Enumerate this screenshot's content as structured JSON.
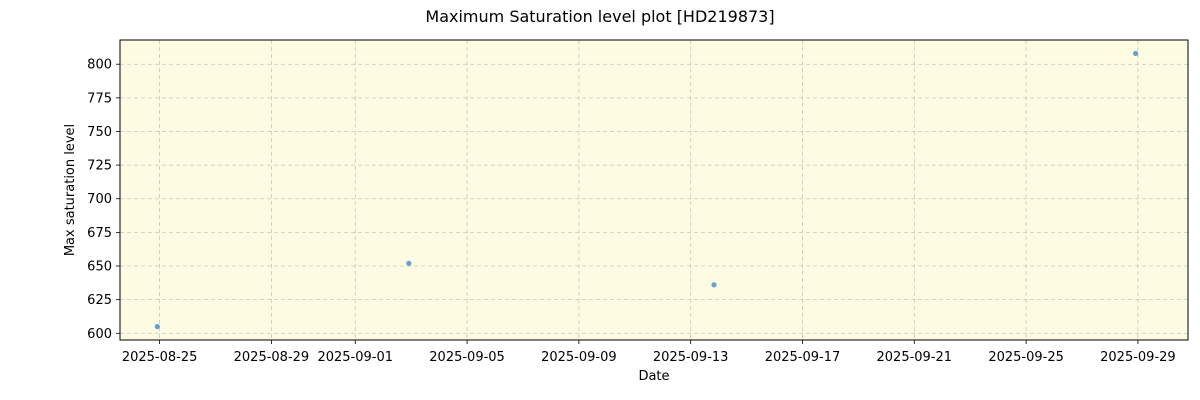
{
  "chart_data": {
    "type": "scatter",
    "title": "Maximum Saturation level plot [HD219873]",
    "xlabel": "Date",
    "ylabel": "Max saturation level",
    "x_ticks": [
      "2025-08-25",
      "2025-08-29",
      "2025-09-01",
      "2025-09-05",
      "2025-09-09",
      "2025-09-13",
      "2025-09-17",
      "2025-09-21",
      "2025-09-25",
      "2025-09-29"
    ],
    "y_ticks": [
      600,
      625,
      650,
      675,
      700,
      725,
      750,
      775,
      800
    ],
    "xlim": [
      "2025-08-23T14:00",
      "2025-09-30T19:00"
    ],
    "ylim": [
      595,
      818
    ],
    "grid": true,
    "background_color": "#fdfce3",
    "marker_color": "#4a90c8",
    "points": [
      {
        "x": "2025-08-24T22:00",
        "y": 605
      },
      {
        "x": "2025-09-02T22:00",
        "y": 652
      },
      {
        "x": "2025-09-13T20:00",
        "y": 636
      },
      {
        "x": "2025-09-28T22:00",
        "y": 808
      }
    ]
  }
}
